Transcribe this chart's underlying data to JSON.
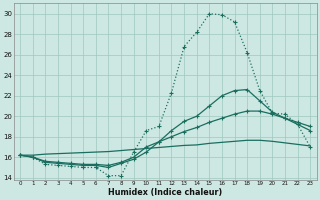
{
  "xlabel": "Humidex (Indice chaleur)",
  "background_color": "#cde8e2",
  "grid_color": "#9fc8be",
  "line_color": "#1a6e60",
  "x": [
    0,
    1,
    2,
    3,
    4,
    5,
    6,
    7,
    8,
    9,
    10,
    11,
    12,
    13,
    14,
    15,
    16,
    17,
    18,
    19,
    20,
    21,
    22,
    23
  ],
  "curve_top": [
    16.2,
    16.0,
    15.3,
    15.2,
    15.1,
    15.0,
    15.0,
    14.2,
    14.2,
    16.5,
    18.6,
    19.0,
    22.3,
    26.8,
    28.2,
    30.0,
    29.9,
    29.2,
    26.2,
    22.5,
    20.3,
    20.2,
    19.2,
    17.0
  ],
  "curve_mid_hi": [
    16.2,
    16.0,
    15.5,
    15.4,
    15.3,
    15.2,
    15.2,
    15.0,
    15.4,
    15.8,
    16.5,
    17.5,
    18.6,
    19.5,
    20.0,
    21.0,
    22.0,
    22.5,
    22.6,
    21.5,
    20.4,
    19.8,
    19.2,
    18.6
  ],
  "curve_mid_lo": [
    16.2,
    16.0,
    15.6,
    15.5,
    15.4,
    15.3,
    15.3,
    15.2,
    15.5,
    16.0,
    17.0,
    17.5,
    18.0,
    18.5,
    18.9,
    19.4,
    19.8,
    20.2,
    20.5,
    20.5,
    20.2,
    19.8,
    19.4,
    19.0
  ],
  "curve_bot": [
    16.2,
    16.2,
    16.3,
    16.35,
    16.4,
    16.45,
    16.5,
    16.55,
    16.65,
    16.75,
    16.85,
    16.95,
    17.05,
    17.15,
    17.2,
    17.35,
    17.45,
    17.55,
    17.65,
    17.65,
    17.55,
    17.4,
    17.25,
    17.1
  ],
  "ylim": [
    13.8,
    31.0
  ],
  "yticks": [
    14,
    16,
    18,
    20,
    22,
    24,
    26,
    28,
    30
  ],
  "xlim": [
    -0.5,
    23.5
  ],
  "xticks": [
    0,
    1,
    2,
    3,
    4,
    5,
    6,
    7,
    8,
    9,
    10,
    11,
    12,
    13,
    14,
    15,
    16,
    17,
    18,
    19,
    20,
    21,
    22,
    23
  ]
}
